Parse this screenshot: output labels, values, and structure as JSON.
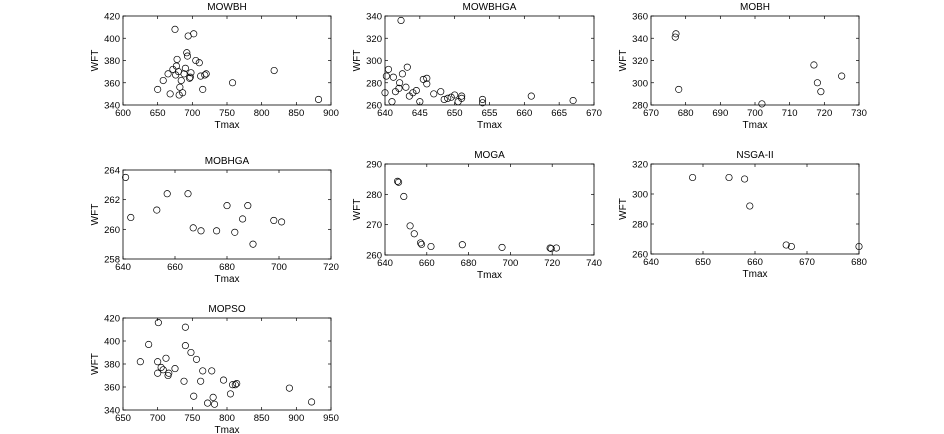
{
  "chart_data": [
    {
      "type": "scatter",
      "title": "MOWBH",
      "xlabel": "Tmax",
      "ylabel": "WFT",
      "xlim": [
        600,
        900
      ],
      "ylim": [
        340,
        420
      ],
      "xticks": [
        600,
        650,
        700,
        750,
        800,
        850,
        900
      ],
      "yticks": [
        340,
        360,
        380,
        400,
        420
      ],
      "points": [
        [
          650,
          354
        ],
        [
          658,
          362
        ],
        [
          665,
          368
        ],
        [
          668,
          350
        ],
        [
          672,
          372
        ],
        [
          675,
          408
        ],
        [
          676,
          367
        ],
        [
          677,
          375
        ],
        [
          678,
          381
        ],
        [
          680,
          370
        ],
        [
          681,
          349
        ],
        [
          682,
          356
        ],
        [
          684,
          362
        ],
        [
          686,
          351
        ],
        [
          688,
          368
        ],
        [
          690,
          373
        ],
        [
          692,
          387
        ],
        [
          693,
          384
        ],
        [
          694,
          402
        ],
        [
          696,
          364
        ],
        [
          697,
          365
        ],
        [
          698,
          369
        ],
        [
          702,
          404
        ],
        [
          705,
          380
        ],
        [
          710,
          378
        ],
        [
          712,
          366
        ],
        [
          715,
          354
        ],
        [
          718,
          367
        ],
        [
          720,
          368
        ],
        [
          758,
          360
        ],
        [
          818,
          371
        ],
        [
          882,
          345
        ]
      ]
    },
    {
      "type": "scatter",
      "title": "MOWBHGA",
      "xlabel": "Tmax",
      "ylabel": "WFT",
      "xlim": [
        640,
        670
      ],
      "ylim": [
        260,
        340
      ],
      "xticks": [
        640,
        645,
        650,
        655,
        660,
        665,
        670
      ],
      "yticks": [
        260,
        280,
        300,
        320,
        340
      ],
      "points": [
        [
          640,
          271
        ],
        [
          640.2,
          286
        ],
        [
          640.5,
          292
        ],
        [
          641,
          263
        ],
        [
          641.2,
          285
        ],
        [
          641.5,
          272
        ],
        [
          642,
          275
        ],
        [
          642.1,
          280
        ],
        [
          642.3,
          336
        ],
        [
          642.5,
          288
        ],
        [
          643,
          276
        ],
        [
          643.2,
          294
        ],
        [
          643.5,
          268
        ],
        [
          644,
          271
        ],
        [
          644.5,
          273
        ],
        [
          645,
          263
        ],
        [
          645.5,
          283
        ],
        [
          646,
          279
        ],
        [
          646,
          284
        ],
        [
          647,
          270
        ],
        [
          648,
          272
        ],
        [
          648.5,
          265
        ],
        [
          649,
          266
        ],
        [
          649.5,
          267
        ],
        [
          650,
          269
        ],
        [
          650.5,
          263
        ],
        [
          651,
          266
        ],
        [
          651,
          268
        ],
        [
          654,
          265
        ],
        [
          654,
          262
        ],
        [
          661,
          268
        ],
        [
          667,
          264
        ]
      ]
    },
    {
      "type": "scatter",
      "title": "MOBH",
      "xlabel": "Tmax",
      "ylabel": "WFT",
      "xlim": [
        670,
        730
      ],
      "ylim": [
        280,
        360
      ],
      "xticks": [
        670,
        680,
        690,
        700,
        710,
        720,
        730
      ],
      "yticks": [
        280,
        300,
        320,
        340,
        360
      ],
      "points": [
        [
          677,
          341
        ],
        [
          677.2,
          344
        ],
        [
          678,
          294
        ],
        [
          702,
          281
        ],
        [
          717,
          316
        ],
        [
          718,
          300
        ],
        [
          719,
          292
        ],
        [
          725,
          306
        ]
      ]
    },
    {
      "type": "scatter",
      "title": "MOBHGA",
      "xlabel": "Tmax",
      "ylabel": "WFT",
      "xlim": [
        640,
        720
      ],
      "ylim": [
        258,
        264
      ],
      "xticks": [
        640,
        660,
        680,
        700,
        720
      ],
      "yticks": [
        258,
        260,
        262,
        264
      ],
      "points": [
        [
          641,
          263.5
        ],
        [
          643,
          260.8
        ],
        [
          653,
          261.3
        ],
        [
          657,
          262.4
        ],
        [
          665,
          262.4
        ],
        [
          667,
          260.1
        ],
        [
          670,
          259.9
        ],
        [
          676,
          259.9
        ],
        [
          680,
          261.6
        ],
        [
          683,
          259.8
        ],
        [
          686,
          260.7
        ],
        [
          688,
          261.6
        ],
        [
          690,
          259.0
        ],
        [
          698,
          260.6
        ],
        [
          701,
          260.5
        ]
      ]
    },
    {
      "type": "scatter",
      "title": "MOGA",
      "xlabel": "Tmax",
      "ylabel": "WFT",
      "xlim": [
        640,
        740
      ],
      "ylim": [
        260,
        290
      ],
      "xticks": [
        640,
        660,
        680,
        700,
        720,
        740
      ],
      "yticks": [
        260,
        270,
        280,
        290
      ],
      "points": [
        [
          646,
          284.3
        ],
        [
          646.5,
          284
        ],
        [
          649,
          279.3
        ],
        [
          652,
          269.6
        ],
        [
          654,
          267
        ],
        [
          657,
          264
        ],
        [
          657.5,
          263.5
        ],
        [
          662,
          262.8
        ],
        [
          677,
          263.4
        ],
        [
          696,
          262.5
        ],
        [
          719,
          262.3
        ],
        [
          719.5,
          262.1
        ],
        [
          722,
          262.3
        ]
      ]
    },
    {
      "type": "scatter",
      "title": "NSGA-II",
      "xlabel": "Tmax",
      "ylabel": "WFT",
      "xlim": [
        640,
        680
      ],
      "ylim": [
        260,
        320
      ],
      "xticks": [
        640,
        650,
        660,
        670,
        680
      ],
      "yticks": [
        260,
        280,
        300,
        320
      ],
      "points": [
        [
          648,
          311
        ],
        [
          655,
          311
        ],
        [
          658,
          310
        ],
        [
          659,
          292
        ],
        [
          666,
          266
        ],
        [
          667,
          265
        ],
        [
          680,
          265
        ]
      ]
    },
    {
      "type": "scatter",
      "title": "MOPSO",
      "xlabel": "Tmax",
      "ylabel": "WFT",
      "xlim": [
        650,
        950
      ],
      "ylim": [
        340,
        420
      ],
      "xticks": [
        650,
        700,
        750,
        800,
        850,
        900,
        950
      ],
      "yticks": [
        340,
        360,
        380,
        400,
        420
      ],
      "points": [
        [
          675,
          382
        ],
        [
          687,
          397
        ],
        [
          700,
          382
        ],
        [
          700,
          372
        ],
        [
          701,
          416
        ],
        [
          705,
          377
        ],
        [
          708,
          375
        ],
        [
          712,
          385
        ],
        [
          715,
          370
        ],
        [
          716,
          372
        ],
        [
          725,
          376
        ],
        [
          738,
          365
        ],
        [
          740,
          412
        ],
        [
          740,
          396
        ],
        [
          748,
          390
        ],
        [
          752,
          352
        ],
        [
          756,
          384
        ],
        [
          762,
          365
        ],
        [
          765,
          374
        ],
        [
          772,
          346
        ],
        [
          778,
          374
        ],
        [
          780,
          351
        ],
        [
          782,
          345
        ],
        [
          795,
          366
        ],
        [
          805,
          354
        ],
        [
          808,
          362
        ],
        [
          812,
          362
        ],
        [
          814,
          363
        ],
        [
          890,
          359
        ],
        [
          922,
          347
        ]
      ]
    }
  ]
}
